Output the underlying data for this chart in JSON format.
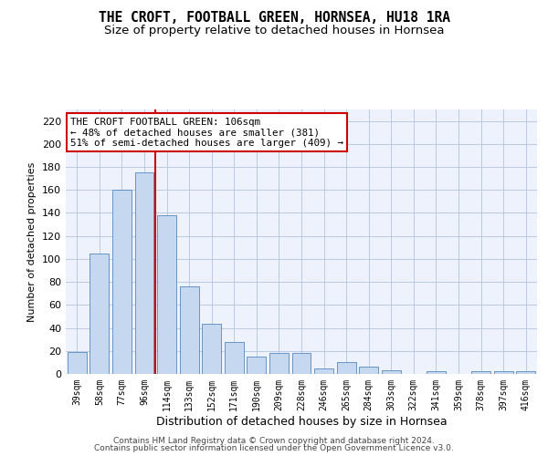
{
  "title": "THE CROFT, FOOTBALL GREEN, HORNSEA, HU18 1RA",
  "subtitle": "Size of property relative to detached houses in Hornsea",
  "xlabel": "Distribution of detached houses by size in Hornsea",
  "ylabel": "Number of detached properties",
  "categories": [
    "39sqm",
    "58sqm",
    "77sqm",
    "96sqm",
    "114sqm",
    "133sqm",
    "152sqm",
    "171sqm",
    "190sqm",
    "209sqm",
    "228sqm",
    "246sqm",
    "265sqm",
    "284sqm",
    "303sqm",
    "322sqm",
    "341sqm",
    "359sqm",
    "378sqm",
    "397sqm",
    "416sqm"
  ],
  "values": [
    19,
    105,
    160,
    175,
    138,
    76,
    44,
    28,
    15,
    18,
    18,
    5,
    10,
    6,
    3,
    0,
    2,
    0,
    2,
    2,
    2
  ],
  "bar_color": "#c5d8f0",
  "bar_edge_color": "#5588bb",
  "vline_x": 3.5,
  "vline_color": "#cc0000",
  "annotation_text": "THE CROFT FOOTBALL GREEN: 106sqm\n← 48% of detached houses are smaller (381)\n51% of semi-detached houses are larger (409) →",
  "annotation_box_color": "#ffffff",
  "annotation_box_edge": "#cc0000",
  "ylim": [
    0,
    230
  ],
  "yticks": [
    0,
    20,
    40,
    60,
    80,
    100,
    120,
    140,
    160,
    180,
    200,
    220
  ],
  "footer1": "Contains HM Land Registry data © Crown copyright and database right 2024.",
  "footer2": "Contains public sector information licensed under the Open Government Licence v3.0.",
  "bg_color": "#eef2fc",
  "title_fontsize": 10.5,
  "subtitle_fontsize": 9.5
}
